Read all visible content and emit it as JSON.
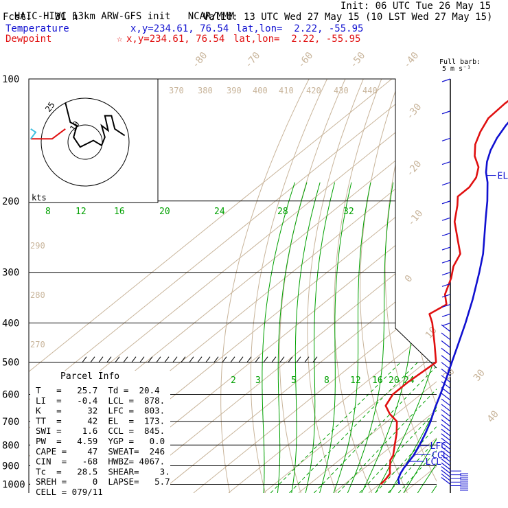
{
  "header": {
    "model_line": "HAIC-HIWC 13km ARW-GFS init",
    "center": "NCAR/MMM",
    "init": "Init: 06 UTC Tue 26 May 15",
    "fcst": "Fcst:    31 h",
    "valid": "Valid: 13 UTC Wed 27 May 15 (10 LST Wed 27 May 15)",
    "temperature_label": "Temperature",
    "temperature_xy": "x,y=234.61, 76.54",
    "temperature_latlon": "lat,lon=  2.22, -55.95",
    "dewpoint_label": "Dewpoint",
    "dewpoint_star": "☆",
    "dewpoint_xy": "x,y=234.61, 76.54",
    "dewpoint_latlon": "lat,lon=  2.22, -55.95"
  },
  "barb_legend": {
    "line1": "Full barb:",
    "line2": "5 m s⁻¹"
  },
  "hodograph": {
    "units": "kts",
    "ring_labels": [
      "10",
      "25"
    ]
  },
  "parcel_info": {
    "title": "Parcel Info",
    "rows": [
      "T   =   25.7  Td =  20.4",
      "LI  =   -0.4  LCL =  878.",
      "K   =     32  LFC =  803.",
      "TT  =     42  EL  =  173.",
      "SWI =    1.6  CCL =  845.",
      "PW  =   4.59  YGP =   0.0",
      "CAPE =    47  SWEAT=  246",
      "CIN  =   -68  HWBZ= 4067.",
      "Tc  =   28.5  SHEAR=    3.",
      "SREH =     0  LAPSE=   5.7",
      "CELL = 079/11"
    ]
  },
  "colors": {
    "temperature": "#1010d0",
    "dewpoint": "#e01010",
    "isotherm": "#c8b49a",
    "dry_adiabat": "#c8b49a",
    "moist_adiabat": "#00a000",
    "mixing_ratio": "#00a000",
    "isobar": "#000000",
    "wind_barb": "#1010d0"
  },
  "chart_data": {
    "type": "line",
    "y_axis": "pressure (hPa)",
    "log_pressure": true,
    "pressure_labels": [
      100,
      200,
      300,
      400,
      500,
      600,
      700,
      800,
      900,
      1000
    ],
    "isotherm_labels": [
      -80,
      -70,
      -60,
      -50,
      -40,
      -30,
      -20,
      -10,
      0,
      10,
      20,
      30,
      40
    ],
    "theta_labels": [
      370,
      380,
      390,
      400,
      410,
      420,
      430,
      440,
      290,
      280,
      270
    ],
    "theta_e_labels": [
      8,
      12,
      16,
      20,
      24,
      28,
      32
    ],
    "mixing_ratio_labels": [
      2,
      3,
      5,
      8,
      12,
      16,
      20,
      24
    ],
    "levels": {
      "EL": 173,
      "LFC": 803,
      "CCL": 845,
      "LCL": 878
    },
    "level_labels": [
      "EL",
      "LFC",
      "CCL",
      "LCL"
    ],
    "series": [
      {
        "name": "Temperature",
        "points": [
          [
            1000,
            25.7
          ],
          [
            970,
            23.5
          ],
          [
            940,
            22.2
          ],
          [
            910,
            21.2
          ],
          [
            880,
            20.4
          ],
          [
            850,
            19.6
          ],
          [
            800,
            17.6
          ],
          [
            750,
            15.2
          ],
          [
            700,
            12.4
          ],
          [
            650,
            9.0
          ],
          [
            600,
            5.6
          ],
          [
            550,
            1.8
          ],
          [
            500,
            -2.5
          ],
          [
            450,
            -7.2
          ],
          [
            400,
            -12.5
          ],
          [
            350,
            -18.8
          ],
          [
            300,
            -26.5
          ],
          [
            270,
            -32.0
          ],
          [
            250,
            -36.5
          ],
          [
            220,
            -44.0
          ],
          [
            200,
            -49.5
          ],
          [
            180,
            -56.0
          ],
          [
            170,
            -60.0
          ],
          [
            160,
            -63.5
          ],
          [
            150,
            -66.5
          ],
          [
            140,
            -69.0
          ],
          [
            130,
            -71.0
          ],
          [
            120,
            -72.5
          ],
          [
            110,
            -73.5
          ],
          [
            100,
            -73.5
          ]
        ]
      },
      {
        "name": "Dewpoint",
        "points": [
          [
            1000,
            20.4
          ],
          [
            970,
            20.0
          ],
          [
            940,
            19.2
          ],
          [
            920,
            17.8
          ],
          [
            900,
            16.5
          ],
          [
            870,
            14.5
          ],
          [
            850,
            13.8
          ],
          [
            800,
            10.5
          ],
          [
            750,
            7.0
          ],
          [
            700,
            2.8
          ],
          [
            670,
            -2.0
          ],
          [
            640,
            -6.0
          ],
          [
            600,
            -8.0
          ],
          [
            560,
            -8.0
          ],
          [
            500,
            -7.0
          ],
          [
            450,
            -14.0
          ],
          [
            400,
            -22.0
          ],
          [
            380,
            -26.0
          ],
          [
            360,
            -24.5
          ],
          [
            340,
            -28.5
          ],
          [
            310,
            -32.5
          ],
          [
            290,
            -36.0
          ],
          [
            270,
            -38.5
          ],
          [
            250,
            -44.0
          ],
          [
            225,
            -51.5
          ],
          [
            205,
            -56.5
          ],
          [
            195,
            -59.5
          ],
          [
            185,
            -59.5
          ],
          [
            175,
            -61.0
          ],
          [
            165,
            -64.0
          ],
          [
            155,
            -69.0
          ],
          [
            145,
            -73.0
          ],
          [
            135,
            -76.0
          ],
          [
            125,
            -78.5
          ],
          [
            115,
            -79.0
          ],
          [
            105,
            -78.5
          ],
          [
            100,
            -78.0
          ]
        ]
      }
    ],
    "hodograph_path": [
      [
        -12,
        -24
      ],
      [
        -9,
        -12
      ],
      [
        -5,
        -10
      ],
      [
        -7,
        -3
      ],
      [
        -3,
        3
      ],
      [
        5,
        -1
      ],
      [
        10,
        2
      ],
      [
        12,
        -3
      ],
      [
        10,
        -10
      ],
      [
        14,
        -7
      ],
      [
        12,
        -16
      ],
      [
        16,
        -16
      ],
      [
        18,
        -8
      ],
      [
        24,
        -4
      ]
    ],
    "hodograph_cyan": [
      [
        -24,
        -12
      ],
      [
        -14,
        -13
      ],
      [
        -12,
        -24
      ]
    ]
  }
}
